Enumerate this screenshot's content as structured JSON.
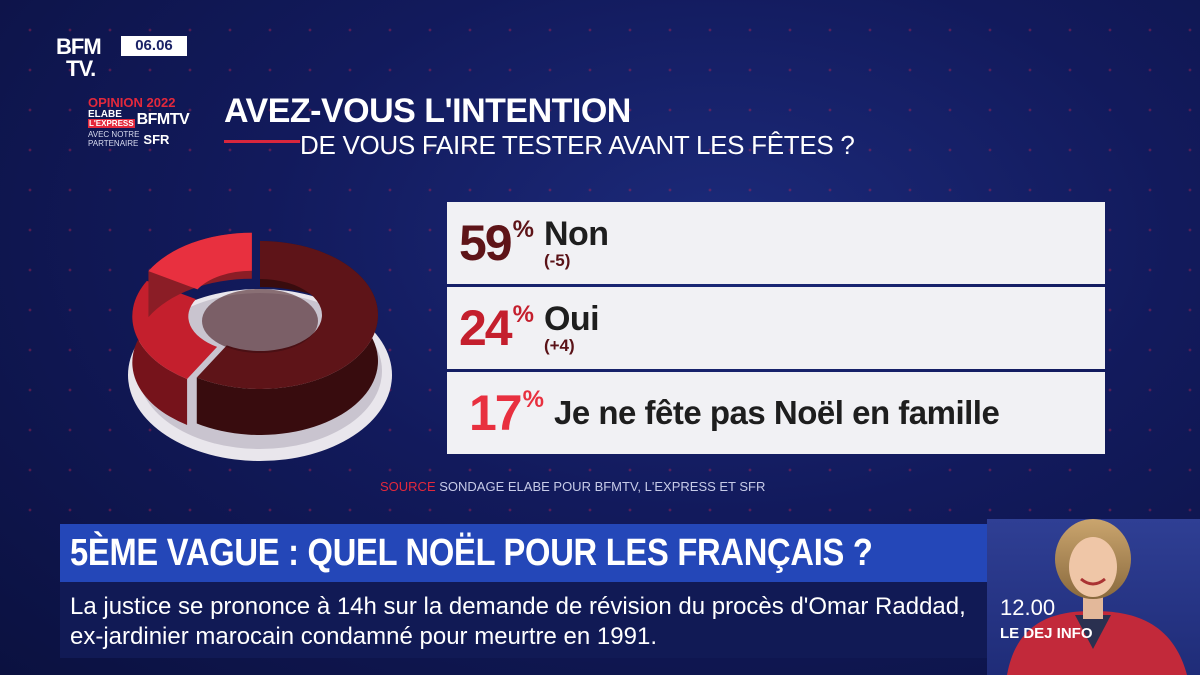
{
  "channel": {
    "logo_line1": "BFM",
    "logo_line2": "TV.",
    "time": "06.06"
  },
  "badge": {
    "line1": "OPINION 2022",
    "line2": "ELABE",
    "line3": "L'EXPRESS",
    "line4": "BFMTV",
    "line5": "AVEC NOTRE",
    "line6": "PARTENAIRE",
    "line7": "SFR"
  },
  "chart_data": {
    "type": "pie",
    "title": "AVEZ-VOUS L'INTENTION",
    "subtitle": "DE VOUS FAIRE TESTER AVANT LES FÊTES ?",
    "categories": [
      "Non",
      "Oui",
      "Je ne fête pas Noël en famille"
    ],
    "values": [
      59,
      24,
      17
    ],
    "changes": [
      "(-5)",
      "(+4)",
      ""
    ],
    "value_labels": [
      "59",
      "24",
      "17"
    ],
    "percent_sign": "%",
    "colors": [
      "#5e1418",
      "#c41f2d",
      "#e8303f"
    ],
    "source_label": "SOURCE",
    "source_text": "SONDAGE ELABE POUR BFMTV, L'EXPRESS ET SFR"
  },
  "news": {
    "headline": "5ÈME VAGUE : QUEL NOËL POUR LES FRANÇAIS ?",
    "ticker": "La justice se prononce à 14h sur la demande de révision du procès d'Omar Raddad, ex-jardinier marocain condamné pour meurtre en 1991."
  },
  "presenter": {
    "time": "12.00",
    "show": "LE DEJ INFO"
  }
}
